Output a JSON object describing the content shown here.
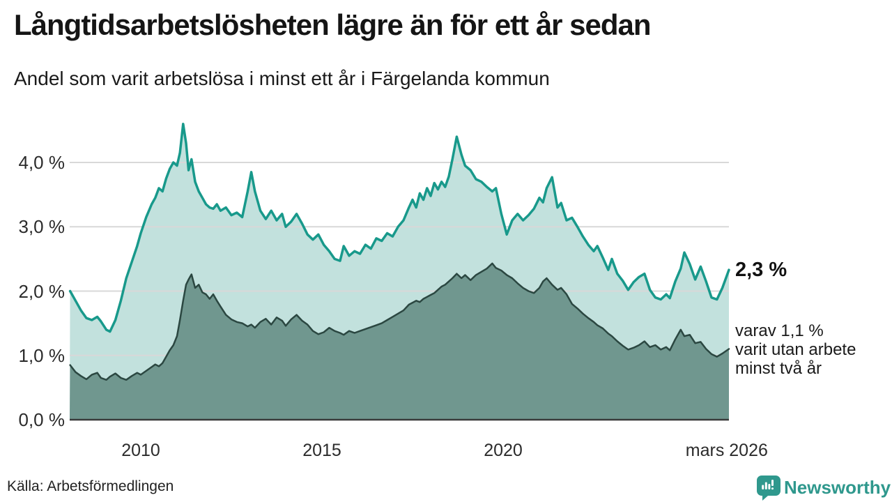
{
  "header": {
    "title": "Långtidsarbetslösheten lägre än för ett år sedan",
    "subtitle": "Andel som varit arbetslösa i minst ett år i Färgelanda kommun"
  },
  "chart_data": {
    "type": "area",
    "title": "Långtidsarbetslösheten lägre än för ett år sedan",
    "subtitle": "Andel som varit arbetslösa i minst ett år i Färgelanda kommun",
    "grid": true,
    "legend_position": "right-annotations",
    "x_axis": {
      "range": [
        2008.05,
        2026.23
      ],
      "ticks": [
        {
          "label": "2010",
          "t": 2010
        },
        {
          "label": "2015",
          "t": 2015
        },
        {
          "label": "2020",
          "t": 2020
        },
        {
          "label": "mars 2026",
          "t": 2026.17
        }
      ]
    },
    "y_axis": {
      "range": [
        0,
        4.8
      ],
      "unit": "%",
      "ticks": [
        {
          "label": "4,0 %",
          "value": 4
        },
        {
          "label": "3,0 %",
          "value": 3
        },
        {
          "label": "2,0 %",
          "value": 2
        },
        {
          "label": "1,0 %",
          "value": 1
        },
        {
          "label": "0,0 %",
          "value": 0
        }
      ]
    },
    "series": [
      {
        "name": "Andel som varit arbetslösa minst ett år",
        "latest_label": "2,3 %",
        "line_color": "#18998b",
        "fill_color": "#c2e1dd",
        "line_width": 3.5,
        "points": [
          [
            2008.05,
            2.0
          ],
          [
            2008.2,
            1.85
          ],
          [
            2008.35,
            1.7
          ],
          [
            2008.5,
            1.58
          ],
          [
            2008.65,
            1.55
          ],
          [
            2008.8,
            1.6
          ],
          [
            2008.9,
            1.53
          ],
          [
            2009.05,
            1.4
          ],
          [
            2009.15,
            1.37
          ],
          [
            2009.3,
            1.55
          ],
          [
            2009.45,
            1.85
          ],
          [
            2009.6,
            2.2
          ],
          [
            2009.75,
            2.45
          ],
          [
            2009.9,
            2.7
          ],
          [
            2010.0,
            2.9
          ],
          [
            2010.15,
            3.15
          ],
          [
            2010.3,
            3.35
          ],
          [
            2010.4,
            3.45
          ],
          [
            2010.5,
            3.6
          ],
          [
            2010.6,
            3.55
          ],
          [
            2010.7,
            3.75
          ],
          [
            2010.8,
            3.9
          ],
          [
            2010.9,
            4.0
          ],
          [
            2011.0,
            3.95
          ],
          [
            2011.08,
            4.15
          ],
          [
            2011.17,
            4.6
          ],
          [
            2011.25,
            4.3
          ],
          [
            2011.32,
            3.88
          ],
          [
            2011.4,
            4.05
          ],
          [
            2011.5,
            3.7
          ],
          [
            2011.6,
            3.55
          ],
          [
            2011.7,
            3.45
          ],
          [
            2011.8,
            3.35
          ],
          [
            2011.9,
            3.3
          ],
          [
            2012.0,
            3.28
          ],
          [
            2012.1,
            3.35
          ],
          [
            2012.2,
            3.25
          ],
          [
            2012.35,
            3.3
          ],
          [
            2012.5,
            3.18
          ],
          [
            2012.65,
            3.22
          ],
          [
            2012.8,
            3.15
          ],
          [
            2012.95,
            3.55
          ],
          [
            2013.05,
            3.85
          ],
          [
            2013.15,
            3.55
          ],
          [
            2013.3,
            3.25
          ],
          [
            2013.45,
            3.12
          ],
          [
            2013.6,
            3.25
          ],
          [
            2013.75,
            3.1
          ],
          [
            2013.9,
            3.2
          ],
          [
            2014.0,
            3.0
          ],
          [
            2014.15,
            3.08
          ],
          [
            2014.3,
            3.2
          ],
          [
            2014.45,
            3.05
          ],
          [
            2014.6,
            2.88
          ],
          [
            2014.75,
            2.8
          ],
          [
            2014.9,
            2.88
          ],
          [
            2015.05,
            2.72
          ],
          [
            2015.2,
            2.62
          ],
          [
            2015.35,
            2.5
          ],
          [
            2015.5,
            2.47
          ],
          [
            2015.6,
            2.7
          ],
          [
            2015.75,
            2.55
          ],
          [
            2015.9,
            2.62
          ],
          [
            2016.05,
            2.58
          ],
          [
            2016.2,
            2.72
          ],
          [
            2016.35,
            2.66
          ],
          [
            2016.5,
            2.82
          ],
          [
            2016.65,
            2.78
          ],
          [
            2016.8,
            2.9
          ],
          [
            2016.95,
            2.85
          ],
          [
            2017.1,
            3.0
          ],
          [
            2017.25,
            3.1
          ],
          [
            2017.4,
            3.3
          ],
          [
            2017.5,
            3.42
          ],
          [
            2017.6,
            3.3
          ],
          [
            2017.7,
            3.52
          ],
          [
            2017.8,
            3.42
          ],
          [
            2017.9,
            3.6
          ],
          [
            2018.0,
            3.48
          ],
          [
            2018.1,
            3.68
          ],
          [
            2018.2,
            3.58
          ],
          [
            2018.3,
            3.7
          ],
          [
            2018.4,
            3.62
          ],
          [
            2018.5,
            3.78
          ],
          [
            2018.6,
            4.05
          ],
          [
            2018.72,
            4.4
          ],
          [
            2018.85,
            4.12
          ],
          [
            2018.95,
            3.95
          ],
          [
            2019.1,
            3.88
          ],
          [
            2019.25,
            3.74
          ],
          [
            2019.4,
            3.7
          ],
          [
            2019.55,
            3.62
          ],
          [
            2019.7,
            3.55
          ],
          [
            2019.8,
            3.6
          ],
          [
            2019.95,
            3.2
          ],
          [
            2020.1,
            2.88
          ],
          [
            2020.25,
            3.1
          ],
          [
            2020.4,
            3.2
          ],
          [
            2020.55,
            3.1
          ],
          [
            2020.7,
            3.18
          ],
          [
            2020.85,
            3.28
          ],
          [
            2021.0,
            3.45
          ],
          [
            2021.1,
            3.38
          ],
          [
            2021.2,
            3.6
          ],
          [
            2021.35,
            3.77
          ],
          [
            2021.5,
            3.3
          ],
          [
            2021.6,
            3.37
          ],
          [
            2021.75,
            3.1
          ],
          [
            2021.9,
            3.14
          ],
          [
            2022.05,
            3.0
          ],
          [
            2022.2,
            2.85
          ],
          [
            2022.35,
            2.72
          ],
          [
            2022.5,
            2.62
          ],
          [
            2022.6,
            2.7
          ],
          [
            2022.75,
            2.52
          ],
          [
            2022.9,
            2.33
          ],
          [
            2023.0,
            2.5
          ],
          [
            2023.15,
            2.27
          ],
          [
            2023.3,
            2.16
          ],
          [
            2023.45,
            2.02
          ],
          [
            2023.6,
            2.14
          ],
          [
            2023.75,
            2.22
          ],
          [
            2023.9,
            2.27
          ],
          [
            2024.05,
            2.02
          ],
          [
            2024.2,
            1.9
          ],
          [
            2024.35,
            1.87
          ],
          [
            2024.5,
            1.95
          ],
          [
            2024.6,
            1.89
          ],
          [
            2024.75,
            2.15
          ],
          [
            2024.9,
            2.35
          ],
          [
            2025.0,
            2.6
          ],
          [
            2025.15,
            2.42
          ],
          [
            2025.3,
            2.18
          ],
          [
            2025.45,
            2.38
          ],
          [
            2025.6,
            2.15
          ],
          [
            2025.75,
            1.9
          ],
          [
            2025.9,
            1.87
          ],
          [
            2026.05,
            2.05
          ],
          [
            2026.23,
            2.33
          ]
        ]
      },
      {
        "name": "varav arbetslösa minst två år",
        "latest_label": "1,1 %",
        "line_color": "#2b4741",
        "fill_color": "#70978f",
        "line_width": 2.5,
        "points": [
          [
            2008.05,
            0.85
          ],
          [
            2008.2,
            0.74
          ],
          [
            2008.35,
            0.68
          ],
          [
            2008.5,
            0.63
          ],
          [
            2008.65,
            0.7
          ],
          [
            2008.8,
            0.73
          ],
          [
            2008.9,
            0.65
          ],
          [
            2009.05,
            0.62
          ],
          [
            2009.15,
            0.67
          ],
          [
            2009.3,
            0.72
          ],
          [
            2009.45,
            0.65
          ],
          [
            2009.6,
            0.62
          ],
          [
            2009.75,
            0.68
          ],
          [
            2009.9,
            0.73
          ],
          [
            2010.0,
            0.7
          ],
          [
            2010.15,
            0.76
          ],
          [
            2010.3,
            0.82
          ],
          [
            2010.4,
            0.86
          ],
          [
            2010.5,
            0.83
          ],
          [
            2010.6,
            0.88
          ],
          [
            2010.7,
            0.98
          ],
          [
            2010.8,
            1.08
          ],
          [
            2010.9,
            1.16
          ],
          [
            2011.0,
            1.3
          ],
          [
            2011.08,
            1.55
          ],
          [
            2011.17,
            1.85
          ],
          [
            2011.25,
            2.1
          ],
          [
            2011.32,
            2.18
          ],
          [
            2011.4,
            2.26
          ],
          [
            2011.5,
            2.05
          ],
          [
            2011.6,
            2.1
          ],
          [
            2011.7,
            1.98
          ],
          [
            2011.8,
            1.95
          ],
          [
            2011.9,
            1.88
          ],
          [
            2012.0,
            1.95
          ],
          [
            2012.1,
            1.85
          ],
          [
            2012.2,
            1.76
          ],
          [
            2012.35,
            1.63
          ],
          [
            2012.5,
            1.56
          ],
          [
            2012.65,
            1.52
          ],
          [
            2012.8,
            1.5
          ],
          [
            2012.95,
            1.45
          ],
          [
            2013.05,
            1.48
          ],
          [
            2013.15,
            1.43
          ],
          [
            2013.3,
            1.52
          ],
          [
            2013.45,
            1.57
          ],
          [
            2013.6,
            1.48
          ],
          [
            2013.75,
            1.59
          ],
          [
            2013.9,
            1.54
          ],
          [
            2014.0,
            1.46
          ],
          [
            2014.15,
            1.56
          ],
          [
            2014.3,
            1.63
          ],
          [
            2014.45,
            1.54
          ],
          [
            2014.6,
            1.48
          ],
          [
            2014.75,
            1.38
          ],
          [
            2014.9,
            1.33
          ],
          [
            2015.05,
            1.36
          ],
          [
            2015.2,
            1.43
          ],
          [
            2015.35,
            1.38
          ],
          [
            2015.5,
            1.35
          ],
          [
            2015.6,
            1.32
          ],
          [
            2015.75,
            1.38
          ],
          [
            2015.9,
            1.35
          ],
          [
            2016.05,
            1.38
          ],
          [
            2016.2,
            1.41
          ],
          [
            2016.35,
            1.44
          ],
          [
            2016.5,
            1.47
          ],
          [
            2016.65,
            1.5
          ],
          [
            2016.8,
            1.55
          ],
          [
            2016.95,
            1.6
          ],
          [
            2017.1,
            1.65
          ],
          [
            2017.25,
            1.7
          ],
          [
            2017.4,
            1.79
          ],
          [
            2017.5,
            1.82
          ],
          [
            2017.6,
            1.85
          ],
          [
            2017.7,
            1.83
          ],
          [
            2017.8,
            1.88
          ],
          [
            2017.9,
            1.91
          ],
          [
            2018.0,
            1.94
          ],
          [
            2018.1,
            1.97
          ],
          [
            2018.2,
            2.02
          ],
          [
            2018.3,
            2.07
          ],
          [
            2018.4,
            2.1
          ],
          [
            2018.5,
            2.15
          ],
          [
            2018.6,
            2.2
          ],
          [
            2018.72,
            2.27
          ],
          [
            2018.85,
            2.2
          ],
          [
            2018.95,
            2.25
          ],
          [
            2019.1,
            2.17
          ],
          [
            2019.25,
            2.25
          ],
          [
            2019.4,
            2.3
          ],
          [
            2019.55,
            2.35
          ],
          [
            2019.7,
            2.43
          ],
          [
            2019.8,
            2.36
          ],
          [
            2019.95,
            2.32
          ],
          [
            2020.1,
            2.25
          ],
          [
            2020.25,
            2.2
          ],
          [
            2020.4,
            2.12
          ],
          [
            2020.55,
            2.05
          ],
          [
            2020.7,
            2.0
          ],
          [
            2020.85,
            1.97
          ],
          [
            2021.0,
            2.05
          ],
          [
            2021.1,
            2.15
          ],
          [
            2021.2,
            2.2
          ],
          [
            2021.35,
            2.1
          ],
          [
            2021.5,
            2.02
          ],
          [
            2021.6,
            2.05
          ],
          [
            2021.75,
            1.95
          ],
          [
            2021.9,
            1.8
          ],
          [
            2022.05,
            1.73
          ],
          [
            2022.2,
            1.65
          ],
          [
            2022.35,
            1.58
          ],
          [
            2022.5,
            1.52
          ],
          [
            2022.6,
            1.47
          ],
          [
            2022.75,
            1.42
          ],
          [
            2022.9,
            1.34
          ],
          [
            2023.0,
            1.3
          ],
          [
            2023.15,
            1.22
          ],
          [
            2023.3,
            1.15
          ],
          [
            2023.45,
            1.09
          ],
          [
            2023.6,
            1.12
          ],
          [
            2023.75,
            1.16
          ],
          [
            2023.9,
            1.22
          ],
          [
            2024.05,
            1.13
          ],
          [
            2024.2,
            1.16
          ],
          [
            2024.35,
            1.09
          ],
          [
            2024.5,
            1.13
          ],
          [
            2024.6,
            1.08
          ],
          [
            2024.75,
            1.25
          ],
          [
            2024.9,
            1.4
          ],
          [
            2025.0,
            1.3
          ],
          [
            2025.15,
            1.32
          ],
          [
            2025.3,
            1.19
          ],
          [
            2025.45,
            1.21
          ],
          [
            2025.6,
            1.1
          ],
          [
            2025.75,
            1.02
          ],
          [
            2025.9,
            0.98
          ],
          [
            2026.05,
            1.03
          ],
          [
            2026.23,
            1.1
          ]
        ]
      }
    ],
    "colors": {
      "gridline": "#d8d8d8",
      "axis_line": "#3a3a3a"
    }
  },
  "annotations": {
    "latest_value": "2,3 %",
    "secondary": "varav 1,1 %\nvarit utan arbete\nminst två år"
  },
  "footer": {
    "source": "Källa: Arbetsförmedlingen",
    "brand": "Newsworthy",
    "brand_color": "#2f988d",
    "logo_icon": "bar-chart-speech-bubble"
  }
}
